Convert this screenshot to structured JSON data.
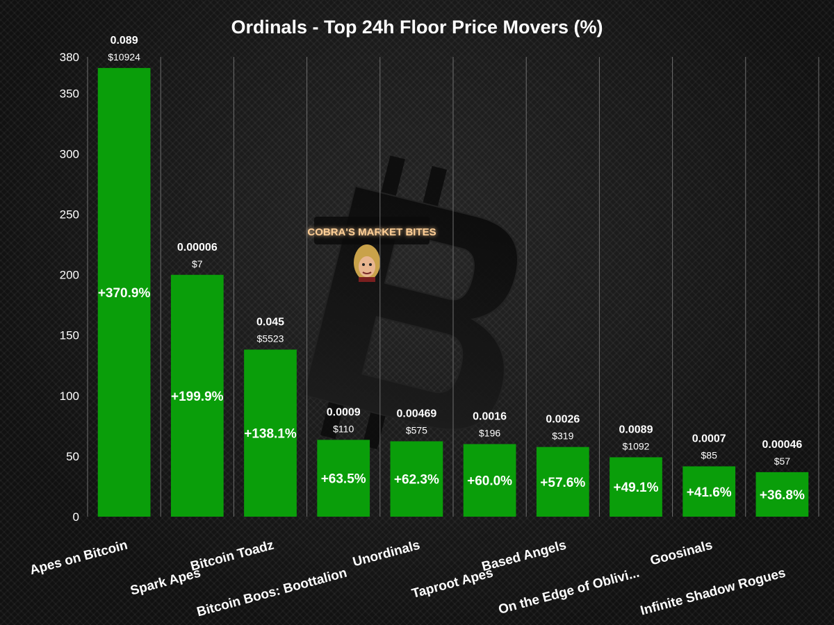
{
  "chart_data": {
    "type": "bar",
    "title": "Ordinals - Top 24h Floor Price Movers (%)",
    "xlabel": "",
    "ylabel": "",
    "ylim": [
      0,
      380
    ],
    "yticks": [
      0,
      50,
      100,
      150,
      200,
      250,
      300,
      350,
      380
    ],
    "grid": "vertical",
    "categories": [
      "Apes on Bitcoin",
      "Spark Apes",
      "Bitcoin Toadz",
      "Bitcoin Boos: Boottalion",
      "Unordinals",
      "Taproot Apes",
      "Based Angels",
      "On the Edge of Oblivi...",
      "Goosinals",
      "Infinite Shadow Rogues"
    ],
    "values": [
      370.9,
      199.9,
      138.1,
      63.5,
      62.3,
      60.0,
      57.6,
      49.1,
      41.6,
      36.8
    ],
    "value_labels": [
      "+370.9%",
      "+199.9%",
      "+138.1%",
      "+63.5%",
      "+62.3%",
      "+60.0%",
      "+57.6%",
      "+49.1%",
      "+41.6%",
      "+36.8%"
    ],
    "btc_prices": [
      "0.089",
      "0.00006",
      "0.045",
      "0.0009",
      "0.00469",
      "0.0016",
      "0.0026",
      "0.0089",
      "0.0007",
      "0.00046"
    ],
    "usd_prices": [
      "$10924",
      "$7",
      "$5523",
      "$110",
      "$575",
      "$196",
      "$319",
      "$1092",
      "$85",
      "$57"
    ],
    "colors": {
      "bar": "#0a9e0a",
      "background": "#141414",
      "text": "#ffffff"
    }
  },
  "watermark": {
    "text": "COBRA'S MARKET BITES",
    "icon": "bitcoin-logo-icon",
    "avatar_icon": "cartoon-face-icon",
    "colors": {
      "text": "#ffcf96",
      "glow": "#ff5a10"
    }
  }
}
